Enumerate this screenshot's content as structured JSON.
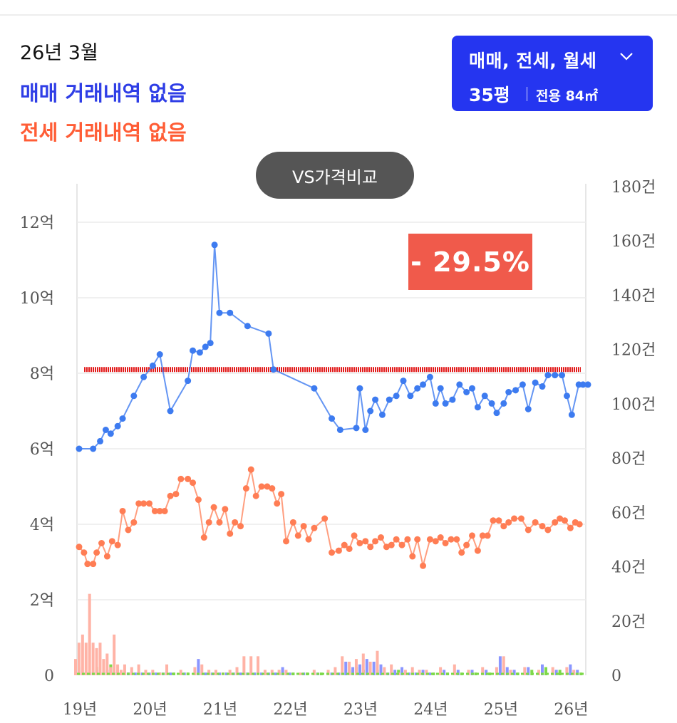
{
  "header": {
    "date": "26년 3월",
    "sale_status": "매매 거래내역 없음",
    "jeonse_status": "전세 거래내역 없음"
  },
  "filter": {
    "types": "매매, 전세, 월세",
    "size": "35평",
    "area": "전용 84㎡"
  },
  "compare_button": "VS가격비교",
  "change_badge": "- 29.5%",
  "colors": {
    "sale": "#3d7bf0",
    "jeonse": "#ff7d54",
    "reference": "#e21a1a",
    "bar_sale": "#8a96ff",
    "bar_jeonse": "#ffb3a6",
    "bar_rent": "#7ed94a",
    "button_bg": "#2535f0"
  },
  "chart_data": {
    "type": "line",
    "x_ticks": [
      "19년",
      "20년",
      "21년",
      "22년",
      "23년",
      "24년",
      "25년",
      "26년"
    ],
    "y_left": {
      "unit": "억",
      "ticks": [
        "12억",
        "10억",
        "8억",
        "6억",
        "4억",
        "2억",
        "0"
      ],
      "range": [
        0,
        13
      ]
    },
    "y_right": {
      "unit": "건",
      "ticks": [
        "180건",
        "160건",
        "140건",
        "120건",
        "100건",
        "80건",
        "60건",
        "40건",
        "20건",
        "0"
      ],
      "range": [
        0,
        180
      ]
    },
    "reference_line": 8.1,
    "series": [
      {
        "key": "sale",
        "x": [
          2019.0,
          2019.2,
          2019.3,
          2019.38,
          2019.45,
          2019.55,
          2019.62,
          2019.78,
          2019.92,
          2020.05,
          2020.15,
          2020.3,
          2020.55,
          2020.62,
          2020.72,
          2020.8,
          2020.87,
          2020.93,
          2021.0,
          2021.15,
          2021.4,
          2021.7,
          2021.77,
          2022.35,
          2022.6,
          2022.72,
          2022.95,
          2023.0,
          2023.08,
          2023.15,
          2023.22,
          2023.32,
          2023.42,
          2023.52,
          2023.62,
          2023.72,
          2023.82,
          2023.9,
          2024.0,
          2024.08,
          2024.15,
          2024.22,
          2024.32,
          2024.42,
          2024.52,
          2024.6,
          2024.68,
          2024.78,
          2024.88,
          2024.95,
          2025.05,
          2025.12,
          2025.22,
          2025.32,
          2025.4,
          2025.5,
          2025.6,
          2025.68,
          2025.78,
          2025.88,
          2025.95,
          2026.02,
          2026.12,
          2026.18,
          2026.25
        ],
        "values": [
          6.0,
          6.0,
          6.2,
          6.5,
          6.4,
          6.6,
          6.8,
          7.4,
          7.9,
          8.2,
          8.5,
          7.0,
          7.8,
          8.6,
          8.55,
          8.7,
          8.8,
          11.4,
          9.6,
          9.6,
          9.25,
          9.05,
          8.1,
          7.6,
          6.8,
          6.5,
          6.55,
          7.6,
          6.5,
          7.0,
          7.3,
          6.9,
          7.3,
          7.4,
          7.8,
          7.4,
          7.6,
          7.7,
          7.9,
          7.2,
          7.6,
          7.2,
          7.3,
          7.7,
          7.5,
          7.6,
          7.1,
          7.4,
          7.2,
          6.95,
          7.2,
          7.5,
          7.55,
          7.7,
          7.05,
          7.75,
          7.65,
          7.95,
          7.95,
          7.95,
          7.4,
          6.9,
          7.7,
          7.7,
          7.7
        ],
        "x_note": "decimal year"
      },
      {
        "key": "jeonse",
        "x": [
          2019.0,
          2019.07,
          2019.12,
          2019.2,
          2019.25,
          2019.32,
          2019.4,
          2019.47,
          2019.55,
          2019.62,
          2019.7,
          2019.78,
          2019.85,
          2019.92,
          2020.0,
          2020.08,
          2020.15,
          2020.22,
          2020.3,
          2020.38,
          2020.45,
          2020.55,
          2020.62,
          2020.7,
          2020.78,
          2020.85,
          2020.92,
          2021.0,
          2021.08,
          2021.15,
          2021.22,
          2021.3,
          2021.38,
          2021.45,
          2021.52,
          2021.6,
          2021.68,
          2021.75,
          2021.82,
          2021.88,
          2021.95,
          2022.05,
          2022.12,
          2022.2,
          2022.27,
          2022.35,
          2022.5,
          2022.6,
          2022.7,
          2022.78,
          2022.85,
          2022.92,
          2023.0,
          2023.08,
          2023.15,
          2023.22,
          2023.3,
          2023.38,
          2023.45,
          2023.52,
          2023.6,
          2023.68,
          2023.75,
          2023.82,
          2023.9,
          2024.0,
          2024.08,
          2024.15,
          2024.22,
          2024.3,
          2024.38,
          2024.45,
          2024.52,
          2024.6,
          2024.68,
          2024.75,
          2024.82,
          2024.9,
          2024.98,
          2025.05,
          2025.12,
          2025.2,
          2025.3,
          2025.4,
          2025.5,
          2025.6,
          2025.68,
          2025.78,
          2025.85,
          2025.92,
          2026.0,
          2026.07,
          2026.13
        ],
        "values": [
          3.4,
          3.25,
          2.95,
          2.95,
          3.25,
          3.5,
          3.15,
          3.55,
          3.45,
          4.35,
          3.85,
          4.05,
          4.55,
          4.55,
          4.55,
          4.35,
          4.35,
          4.35,
          4.75,
          4.8,
          5.2,
          5.2,
          5.1,
          4.65,
          3.65,
          4.05,
          4.45,
          4.05,
          4.4,
          3.75,
          4.05,
          3.95,
          4.95,
          5.45,
          4.75,
          5.0,
          5.0,
          4.95,
          4.55,
          4.8,
          3.55,
          4.05,
          3.7,
          3.95,
          3.6,
          3.9,
          4.15,
          3.25,
          3.3,
          3.45,
          3.35,
          3.7,
          3.5,
          3.55,
          3.4,
          3.55,
          3.65,
          3.4,
          3.45,
          3.6,
          3.45,
          3.6,
          3.15,
          3.6,
          2.9,
          3.6,
          3.55,
          3.65,
          3.5,
          3.6,
          3.6,
          3.25,
          3.45,
          3.7,
          3.3,
          3.7,
          3.7,
          4.1,
          4.1,
          3.95,
          4.05,
          4.15,
          4.15,
          3.85,
          4.05,
          3.95,
          3.85,
          4.05,
          4.15,
          4.1,
          3.9,
          4.05,
          4.0
        ],
        "x_note": "decimal year"
      }
    ],
    "volume": {
      "unit": "건",
      "x": [
        2019.0,
        2019.05,
        2019.1,
        2019.15,
        2019.2,
        2019.25,
        2019.3,
        2019.35,
        2019.4,
        2019.45,
        2019.5,
        2019.55,
        2019.6,
        2019.65,
        2019.7,
        2019.8,
        2019.9,
        2020.0,
        2020.1,
        2020.2,
        2020.3,
        2020.5,
        2020.7,
        2020.8,
        2020.9,
        2021.0,
        2021.1,
        2021.2,
        2021.3,
        2021.4,
        2021.5,
        2021.6,
        2021.7,
        2021.8,
        2021.9,
        2022.0,
        2022.2,
        2022.4,
        2022.6,
        2022.7,
        2022.8,
        2022.9,
        2023.0,
        2023.1,
        2023.2,
        2023.3,
        2023.4,
        2023.5,
        2023.6,
        2023.7,
        2023.8,
        2023.9,
        2024.0,
        2024.2,
        2024.4,
        2024.6,
        2024.8,
        2025.0,
        2025.1,
        2025.2,
        2025.4,
        2025.6,
        2025.8,
        2026.0,
        2026.1
      ],
      "jeonse": [
        6,
        12,
        15,
        12,
        30,
        12,
        10,
        12,
        6,
        8,
        3,
        15,
        4,
        2,
        4,
        3,
        4,
        2,
        2,
        1,
        4,
        2,
        3,
        4,
        2,
        2,
        1,
        2,
        3,
        7,
        7,
        7,
        2,
        2,
        2,
        2,
        1,
        2,
        2,
        3,
        7,
        5,
        6,
        8,
        5,
        9,
        3,
        4,
        1,
        2,
        3,
        2,
        2,
        3,
        4,
        2,
        3,
        3,
        7,
        2,
        3,
        2,
        3,
        3,
        2
      ],
      "sale": [
        3,
        1,
        1,
        1,
        1,
        2,
        1,
        1,
        2,
        1,
        1,
        1,
        1,
        1,
        1,
        1,
        1,
        1,
        1,
        1,
        1,
        1,
        6,
        1,
        1,
        1,
        1,
        1,
        1,
        1,
        1,
        1,
        1,
        1,
        3,
        1,
        1,
        1,
        1,
        1,
        5,
        3,
        4,
        6,
        5,
        4,
        1,
        2,
        3,
        1,
        1,
        2,
        1,
        2,
        2,
        2,
        2,
        7,
        3,
        2,
        3,
        4,
        2,
        4,
        2
      ],
      "rent": [
        1,
        1,
        1,
        1,
        3,
        1,
        1,
        2,
        4,
        1,
        1,
        1,
        1,
        1,
        1,
        1,
        1,
        1,
        1,
        1,
        1,
        1,
        1,
        1,
        1,
        1,
        1,
        1,
        1,
        1,
        1,
        1,
        1,
        1,
        1,
        1,
        1,
        1,
        1,
        1,
        2,
        3,
        2,
        1,
        2,
        1,
        1,
        2,
        1,
        1,
        1,
        1,
        1,
        1,
        1,
        1,
        1,
        2,
        1,
        1,
        2,
        3,
        2,
        1,
        1
      ]
    }
  }
}
